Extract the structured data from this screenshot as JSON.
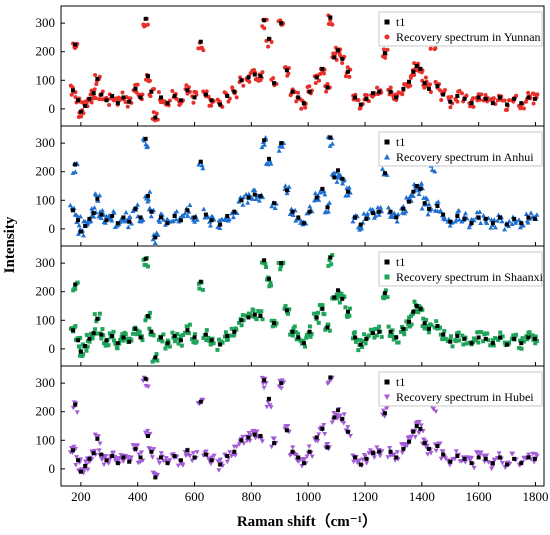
{
  "chart_data": {
    "type": "scatter",
    "xlabel": "Raman shift（cm⁻¹）",
    "ylabel": "Intensity",
    "xlim": [
      130,
      1830
    ],
    "ylim": [
      -60,
      360
    ],
    "x_ticks": [
      200,
      400,
      600,
      800,
      1000,
      1200,
      1400,
      1600,
      1800
    ],
    "x_tick_labels": [
      "200",
      "400",
      "600",
      "800",
      "1000",
      "1200",
      "1400",
      "1600",
      "1800"
    ],
    "y_ticks": [
      0,
      100,
      200,
      300
    ],
    "y_tick_labels": [
      "0",
      "100",
      "200",
      "300"
    ],
    "legend_placement": "top-right",
    "grid": false,
    "reference": {
      "name": "t1",
      "color": "#000000",
      "marker": "square",
      "points": [
        [
          172,
          65
        ],
        [
          180,
          225
        ],
        [
          190,
          30
        ],
        [
          200,
          -10
        ],
        [
          215,
          10
        ],
        [
          230,
          35
        ],
        [
          245,
          55
        ],
        [
          258,
          105
        ],
        [
          272,
          50
        ],
        [
          290,
          30
        ],
        [
          310,
          45
        ],
        [
          330,
          20
        ],
        [
          350,
          40
        ],
        [
          370,
          25
        ],
        [
          392,
          70
        ],
        [
          410,
          40
        ],
        [
          428,
          315
        ],
        [
          436,
          115
        ],
        [
          448,
          60
        ],
        [
          462,
          -30
        ],
        [
          482,
          40
        ],
        [
          505,
          20
        ],
        [
          530,
          45
        ],
        [
          552,
          30
        ],
        [
          575,
          65
        ],
        [
          600,
          40
        ],
        [
          622,
          235
        ],
        [
          640,
          50
        ],
        [
          660,
          30
        ],
        [
          690,
          15
        ],
        [
          715,
          45
        ],
        [
          740,
          60
        ],
        [
          765,
          100
        ],
        [
          790,
          110
        ],
        [
          812,
          120
        ],
        [
          832,
          115
        ],
        [
          845,
          310
        ],
        [
          862,
          245
        ],
        [
          880,
          90
        ],
        [
          905,
          300
        ],
        [
          925,
          135
        ],
        [
          945,
          60
        ],
        [
          965,
          40
        ],
        [
          985,
          20
        ],
        [
          1005,
          60
        ],
        [
          1030,
          110
        ],
        [
          1050,
          140
        ],
        [
          1068,
          75
        ],
        [
          1078,
          320
        ],
        [
          1092,
          180
        ],
        [
          1105,
          205
        ],
        [
          1120,
          175
        ],
        [
          1140,
          130
        ],
        [
          1165,
          40
        ],
        [
          1185,
          15
        ],
        [
          1205,
          35
        ],
        [
          1228,
          55
        ],
        [
          1250,
          60
        ],
        [
          1270,
          195
        ],
        [
          1290,
          60
        ],
        [
          1310,
          40
        ],
        [
          1335,
          70
        ],
        [
          1355,
          95
        ],
        [
          1370,
          130
        ],
        [
          1382,
          150
        ],
        [
          1395,
          140
        ],
        [
          1410,
          90
        ],
        [
          1425,
          70
        ],
        [
          1440,
          230
        ],
        [
          1455,
          80
        ],
        [
          1475,
          50
        ],
        [
          1500,
          25
        ],
        [
          1525,
          45
        ],
        [
          1550,
          35
        ],
        [
          1575,
          20
        ],
        [
          1600,
          40
        ],
        [
          1625,
          35
        ],
        [
          1650,
          20
        ],
        [
          1675,
          40
        ],
        [
          1700,
          15
        ],
        [
          1725,
          35
        ],
        [
          1750,
          20
        ],
        [
          1775,
          40
        ],
        [
          1798,
          35
        ]
      ]
    },
    "panels": [
      {
        "legend_reference": "t1",
        "series_name": "Recovery spectrum in Yunnan",
        "marker": "circle",
        "color": "#e8302b",
        "seed": 11
      },
      {
        "legend_reference": "t1",
        "series_name": "Recovery spectrum in Anhui",
        "marker": "triangle-up",
        "color": "#1f6fd1",
        "seed": 23
      },
      {
        "legend_reference": "t1",
        "series_name": "Recovery spectrum in Shaanxi",
        "marker": "square",
        "color": "#1fa55a",
        "seed": 37
      },
      {
        "legend_reference": "t1",
        "series_name": "Recovery spectrum in Hubei",
        "marker": "triangle-down",
        "color": "#a35bd6",
        "seed": 51
      }
    ]
  }
}
